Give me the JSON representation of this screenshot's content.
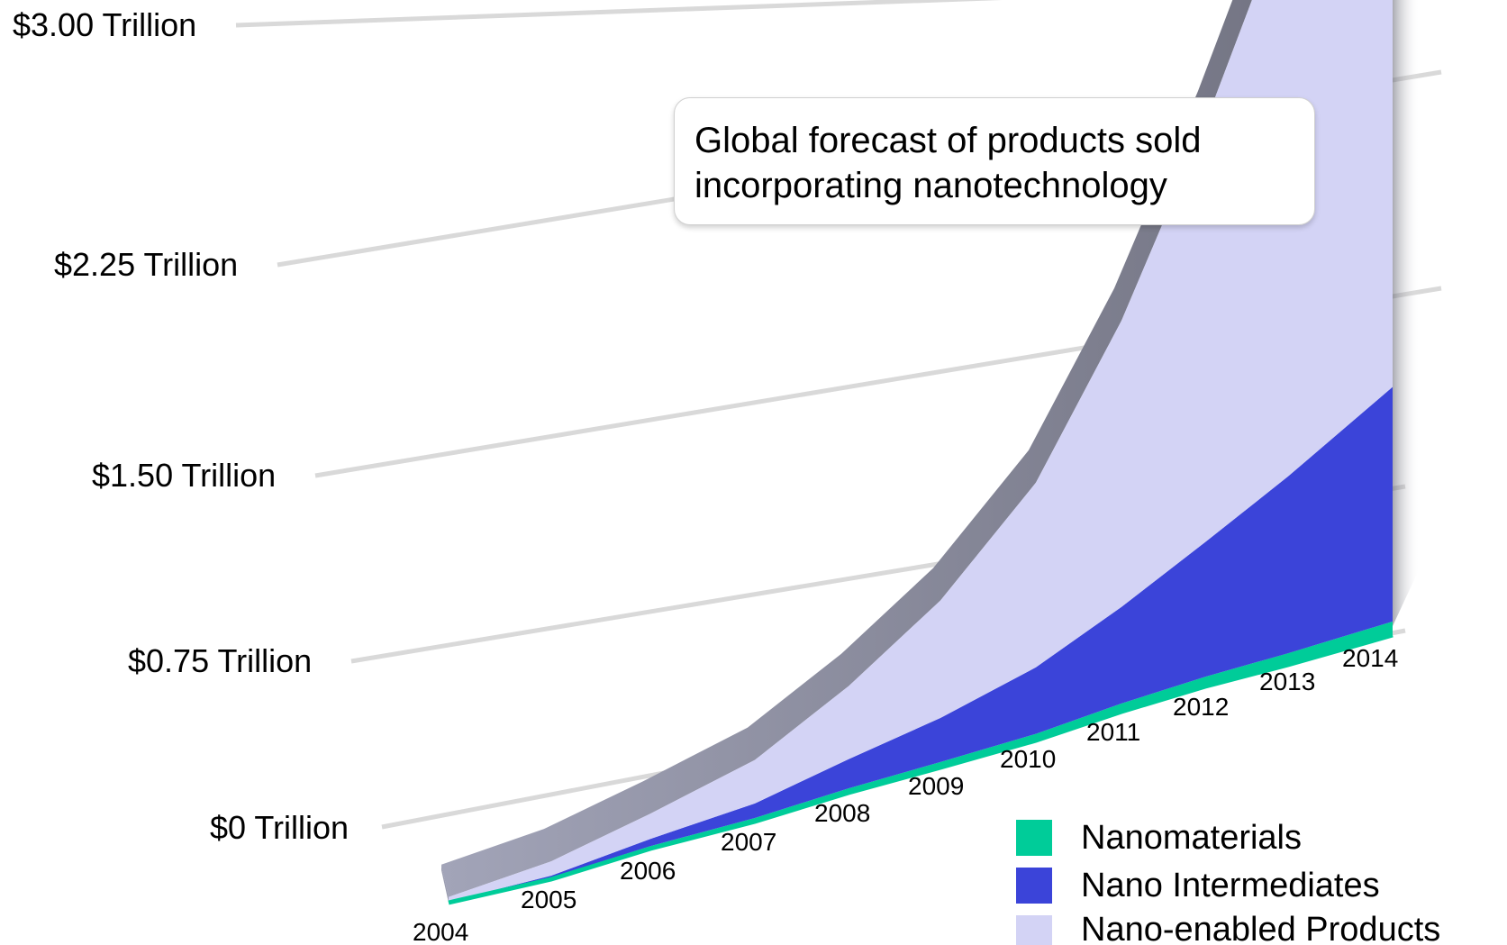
{
  "chart_data": {
    "type": "area",
    "title": "Global forecast of products sold incorporating nanotechnology",
    "x": [
      "2004",
      "2005",
      "2006",
      "2007",
      "2008",
      "2009",
      "2010",
      "2011",
      "2012",
      "2013",
      "2014"
    ],
    "yticks": [
      "$0 Trillion",
      "$0.75 Trillion",
      "$1.50 Trillion",
      "$2.25 Trillion",
      "$3.00 Trillion"
    ],
    "ylim": [
      0,
      3.0
    ],
    "unit": "Trillion USD",
    "stacked": true,
    "series": [
      {
        "name": "Nanomaterials",
        "color": "#00cc99",
        "values": [
          0.003,
          0.005,
          0.007,
          0.01,
          0.012,
          0.015,
          0.018,
          0.022,
          0.026,
          0.031,
          0.036
        ]
      },
      {
        "name": "Nano Intermediates",
        "color": "#3b44d9",
        "values": [
          0.0,
          0.005,
          0.02,
          0.04,
          0.08,
          0.12,
          0.18,
          0.26,
          0.36,
          0.47,
          0.62
        ]
      },
      {
        "name": "Nano-enabled Products",
        "color": "#d3d3f5",
        "values": [
          0.013,
          0.04,
          0.07,
          0.12,
          0.2,
          0.32,
          0.5,
          0.77,
          1.12,
          1.52,
          2.0
        ]
      }
    ],
    "legend": {
      "placement": "bottom-right"
    },
    "grid": true
  }
}
